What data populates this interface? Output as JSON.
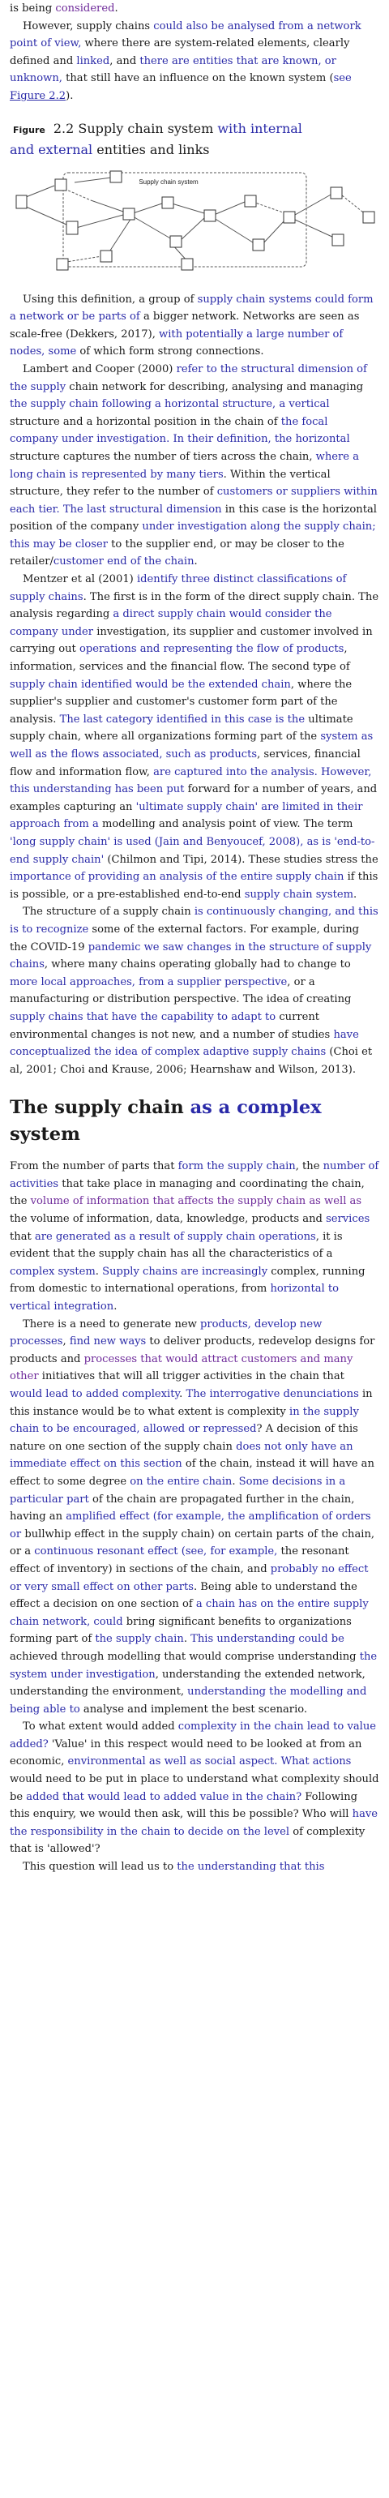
{
  "intro": {
    "frag_0": "is being ",
    "frag_1": "considered",
    "frag_2": "."
  },
  "p1": {
    "s0": "However, supply chains ",
    "s1": "could also be analysed from a network point of view,",
    "s2": " where there are system-related elements, clearly defined and ",
    "s3": "linked",
    "s4": ", and ",
    "s5": "there are entities that are known, or unknown,",
    "s6": " that still have an influence on the known system (",
    "s7": "see ",
    "s8": "Figure 2.2",
    "s9": ")."
  },
  "figure": {
    "label": "Figure",
    "number": "2.2",
    "title_a": " Supply chain system ",
    "title_b": "with internal",
    "title_c": "and external",
    "title_d": " entities and links",
    "box_label": "Supply chain system"
  },
  "p2": {
    "s0": "Using this definition, a group of ",
    "s1": "supply chain systems could form a network or be parts of",
    "s2": " a bigger network. Networks are seen as scale-free (Dekkers, 2017), ",
    "s3": "with potentially a large number of nodes, some",
    "s4": " of which form strong connections."
  },
  "p3": {
    "s0": "Lambert and Cooper (2000) ",
    "s1": "refer to the structural dimension of the supply",
    "s2": " chain network for describing, analysing and managing ",
    "s3": "the supply chain following a horizontal structure, a vertical",
    "s4": " structure and a horizontal position in the chain of ",
    "s5": "the focal company under investigation. In their definition, the horizontal",
    "s6": " structure captures the number of tiers across the chain, ",
    "s7": "where a long chain is represented by many tiers",
    "s8": ". Within the vertical structure, they refer to the number of ",
    "s9": "customers or suppliers within each tier. The last structural dimension",
    "s10": " in this case is the horizontal position of the company ",
    "s11": "under investigation along the supply chain; this may be closer",
    "s12": " to the supplier end, or may be closer to the retailer/",
    "s13": "customer end of the chain",
    "s14": "."
  },
  "p4": {
    "s0": "Mentzer et al (2001) ",
    "s1": "identify three distinct classifications of supply chains",
    "s2": ". The first is in the form of the direct supply chain. The analysis regarding ",
    "s3": "a direct supply chain would consider the company under",
    "s4": " investigation, its supplier and customer involved in carrying out ",
    "s5": "operations and representing the flow of products",
    "s6": ", information, services and the financial flow. The second type of ",
    "s7": "supply chain identified would be the extended chain",
    "s8": ", where the supplier's supplier and customer's customer form part of the analysis. ",
    "s9": "The last category identified in this case is the",
    "s10": " ultimate supply chain, where all organizations forming part of the ",
    "s11": "system as well as the flows associated, such as products",
    "s12": ", services, financial flow and information flow, ",
    "s13": "are captured into the analysis. However, this understanding has been put",
    "s14": " forward for a number of years, and examples capturing an ",
    "s15": "'ultimate supply chain' are limited in their approach from a",
    "s16": " modelling and analysis point of view. The term ",
    "s17": "'long supply chain' is used (Jain and Benyoucef, 2008), as is 'end-to-end supply chain'",
    "s18": " (Chilmon and Tipi, 2014). These studies stress the ",
    "s19": "importance of providing an analysis of the entire supply chain",
    "s20": " if this is possible, or a pre-established end-to-end ",
    "s21": "supply chain system",
    "s22": "."
  },
  "p5": {
    "s0": "The structure of a supply chain ",
    "s1": "is continuously changing, and this is to recognize",
    "s2": " some of the external factors. For example, during the COVID-19 ",
    "s3": "pandemic we saw changes in the structure of supply chains",
    "s4": ", where many chains operating globally had to change to ",
    "s5": "more local approaches, from a supplier perspective",
    "s6": ", or a manufacturing or distribution perspective. The idea of creating ",
    "s7": "supply chains that have the capability to adapt to",
    "s8": " current environmental changes is not new, and a number of studies ",
    "s9": "have conceptualized the idea of complex adaptive supply chains",
    "s10": " (Choi et al, 2001; Choi and Krause, 2006; Hearnshaw and Wilson, 2013)."
  },
  "heading": {
    "a": "The supply chain ",
    "b": "as a complex",
    "c": " system"
  },
  "p6": {
    "s0": "From the number of parts that ",
    "s1": "form the supply chain",
    "s2": ", the ",
    "s3": "number of activities",
    "s4": " that take place in managing and coordinating the chain, the ",
    "s5": "volume of information that affects the supply chain as well as",
    "s6": " the volume of information, data, knowledge, products and ",
    "s7": "services",
    "s8": " that ",
    "s9": "are generated as a result of supply chain operations",
    "s10": ", it is evident that the supply chain has all the characteristics of a ",
    "s11": "complex system",
    "s12": ". ",
    "s13": "Supply chains are increasingly",
    "s14": " complex, running from domestic to international operations, from ",
    "s15": "horizontal to vertical integration",
    "s16": "."
  },
  "p7": {
    "s0": "There is a need to generate new ",
    "s1": "products, develop new processes",
    "s2": ", ",
    "s3": "find new ways",
    "s4": " to deliver products, redevelop designs for products and ",
    "s5": "processes that would attract customers and many other",
    "s6": " initiatives that will all trigger activities in the chain that ",
    "s7": "would lead to added complexity",
    "s8": ". ",
    "s9": "The interrogative denunciations",
    "s10": " in this instance would be to what extent is complexity ",
    "s11": "in the supply chain to be encouraged, allowed or repressed",
    "s12": "? A decision of this nature on one section of the supply chain ",
    "s13": "does not only have an immediate effect on this section",
    "s14": " of the chain, instead it will have an effect to some degree ",
    "s15": "on the entire chain",
    "s16": ". ",
    "s17": "Some decisions in a particular part",
    "s18": " of the chain are propagated further in the chain, having an ",
    "s19": "amplified effect (for example, the amplification of orders or",
    "s20": " bullwhip effect in the supply chain) on certain parts of the chain, or a ",
    "s21": "continuous resonant effect (see, for example,",
    "s22": " the resonant effect of inventory) in sections of the chain, and ",
    "s23": "probably no effect or very small effect on other parts",
    "s24": ". Being able to understand the effect a decision on one section of ",
    "s25": "a chain has on the entire supply chain network, could",
    "s26": " bring significant benefits to organizations forming part of ",
    "s27": "the supply chain",
    "s28": ". ",
    "s29": "This understanding could be",
    "s30": " achieved through modelling that would comprise understanding ",
    "s31": "the system under investigation",
    "s32": ", understanding the extended network, understanding the environment, ",
    "s33": "understanding the modelling and being able to",
    "s34": " analyse and implement the best scenario."
  },
  "p8": {
    "s0": "To what extent would added ",
    "s1": "complexity in the chain lead to value added?",
    "s2": " 'Value' in this respect would need to be looked at from an economic, ",
    "s3": "environmental as well as social aspect. What actions",
    "s4": " would need to be put in place to understand what complexity should be ",
    "s5": "added that would lead to added value in the chain?",
    "s6": " Following this enquiry, we would then ask, will this be possible? Who will ",
    "s7": "have the responsibility in the chain to decide on the level",
    "s8": " of complexity that is 'allowed'?"
  },
  "p9": {
    "s0": "This question will lead us to ",
    "s1": "the understanding that this"
  }
}
